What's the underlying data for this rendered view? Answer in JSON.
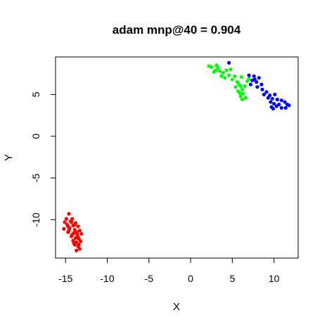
{
  "chart_data": {
    "type": "scatter",
    "title": "adam mnp@40 = 0.904",
    "xlabel": "X",
    "ylabel": "Y",
    "xlim": [
      -16.2,
      12.9
    ],
    "ylim": [
      -14.6,
      9.5
    ],
    "xticks": [
      -15,
      -10,
      -5,
      0,
      5,
      10
    ],
    "yticks": [
      -10,
      -5,
      0,
      5
    ],
    "grid": false,
    "series": [
      {
        "color": "#ff0000",
        "points": [
          [
            -14.6,
            -9.3
          ],
          [
            -14.9,
            -9.9
          ],
          [
            -14.2,
            -9.9
          ],
          [
            -15.1,
            -10.3
          ],
          [
            -14.4,
            -10.2
          ],
          [
            -13.8,
            -10.4
          ],
          [
            -14.8,
            -10.6
          ],
          [
            -14.1,
            -10.7
          ],
          [
            -13.5,
            -10.8
          ],
          [
            -15.2,
            -11.1
          ],
          [
            -14.5,
            -11.0
          ],
          [
            -13.9,
            -11.2
          ],
          [
            -13.3,
            -11.3
          ],
          [
            -14.7,
            -11.5
          ],
          [
            -14.0,
            -11.6
          ],
          [
            -13.6,
            -11.8
          ],
          [
            -13.1,
            -11.7
          ],
          [
            -14.3,
            -12.0
          ],
          [
            -13.8,
            -12.2
          ],
          [
            -13.4,
            -12.3
          ],
          [
            -14.1,
            -12.5
          ],
          [
            -13.7,
            -12.7
          ],
          [
            -13.2,
            -12.6
          ],
          [
            -13.9,
            -13.0
          ],
          [
            -13.5,
            -13.2
          ],
          [
            -13.3,
            -13.5
          ],
          [
            -13.7,
            -13.7
          ],
          [
            -14.3,
            -10.3
          ],
          [
            -14.6,
            -11.3
          ],
          [
            -13.6,
            -11.5
          ],
          [
            -14.2,
            -11.8
          ],
          [
            -13.5,
            -12.1
          ],
          [
            -14.0,
            -12.8
          ],
          [
            -13.4,
            -13.0
          ],
          [
            -14.7,
            -10.8
          ],
          [
            -13.9,
            -10.6
          ]
        ]
      },
      {
        "color": "#00ff00",
        "points": [
          [
            2.2,
            8.4
          ],
          [
            2.5,
            8.3
          ],
          [
            3.1,
            8.5
          ],
          [
            3.0,
            7.9
          ],
          [
            2.8,
            7.7
          ],
          [
            3.5,
            7.8
          ],
          [
            3.9,
            7.6
          ],
          [
            4.3,
            7.9
          ],
          [
            4.6,
            7.3
          ],
          [
            3.7,
            7.2
          ],
          [
            4.1,
            7.0
          ],
          [
            5.3,
            7.2
          ],
          [
            5.0,
            6.8
          ],
          [
            5.6,
            6.5
          ],
          [
            5.8,
            6.2
          ],
          [
            6.0,
            6.0
          ],
          [
            5.4,
            5.9
          ],
          [
            6.2,
            5.6
          ],
          [
            6.5,
            6.0
          ],
          [
            5.7,
            5.4
          ],
          [
            6.3,
            5.1
          ],
          [
            6.0,
            4.8
          ],
          [
            6.6,
            4.6
          ],
          [
            6.2,
            4.4
          ],
          [
            5.9,
            5.2
          ],
          [
            6.8,
            6.6
          ],
          [
            7.0,
            6.9
          ],
          [
            3.3,
            8.2
          ],
          [
            4.8,
            8.0
          ],
          [
            6.1,
            7.1
          ]
        ]
      },
      {
        "color": "#0000ff",
        "points": [
          [
            4.6,
            8.8
          ],
          [
            7.0,
            7.3
          ],
          [
            7.6,
            7.2
          ],
          [
            8.2,
            7.0
          ],
          [
            7.4,
            6.7
          ],
          [
            7.9,
            6.5
          ],
          [
            8.5,
            6.2
          ],
          [
            7.2,
            6.2
          ],
          [
            8.0,
            5.9
          ],
          [
            8.6,
            5.6
          ],
          [
            9.1,
            5.3
          ],
          [
            8.8,
            5.0
          ],
          [
            9.5,
            4.9
          ],
          [
            10.1,
            5.0
          ],
          [
            9.3,
            4.6
          ],
          [
            9.8,
            4.5
          ],
          [
            10.4,
            4.4
          ],
          [
            10.9,
            4.3
          ],
          [
            11.3,
            4.1
          ],
          [
            9.6,
            4.1
          ],
          [
            10.0,
            3.9
          ],
          [
            10.6,
            3.8
          ],
          [
            11.6,
            3.8
          ],
          [
            9.7,
            3.5
          ],
          [
            10.9,
            3.4
          ],
          [
            11.4,
            3.4
          ],
          [
            10.3,
            3.6
          ],
          [
            11.8,
            3.7
          ],
          [
            9.9,
            3.3
          ],
          [
            7.7,
            6.8
          ]
        ]
      }
    ]
  }
}
